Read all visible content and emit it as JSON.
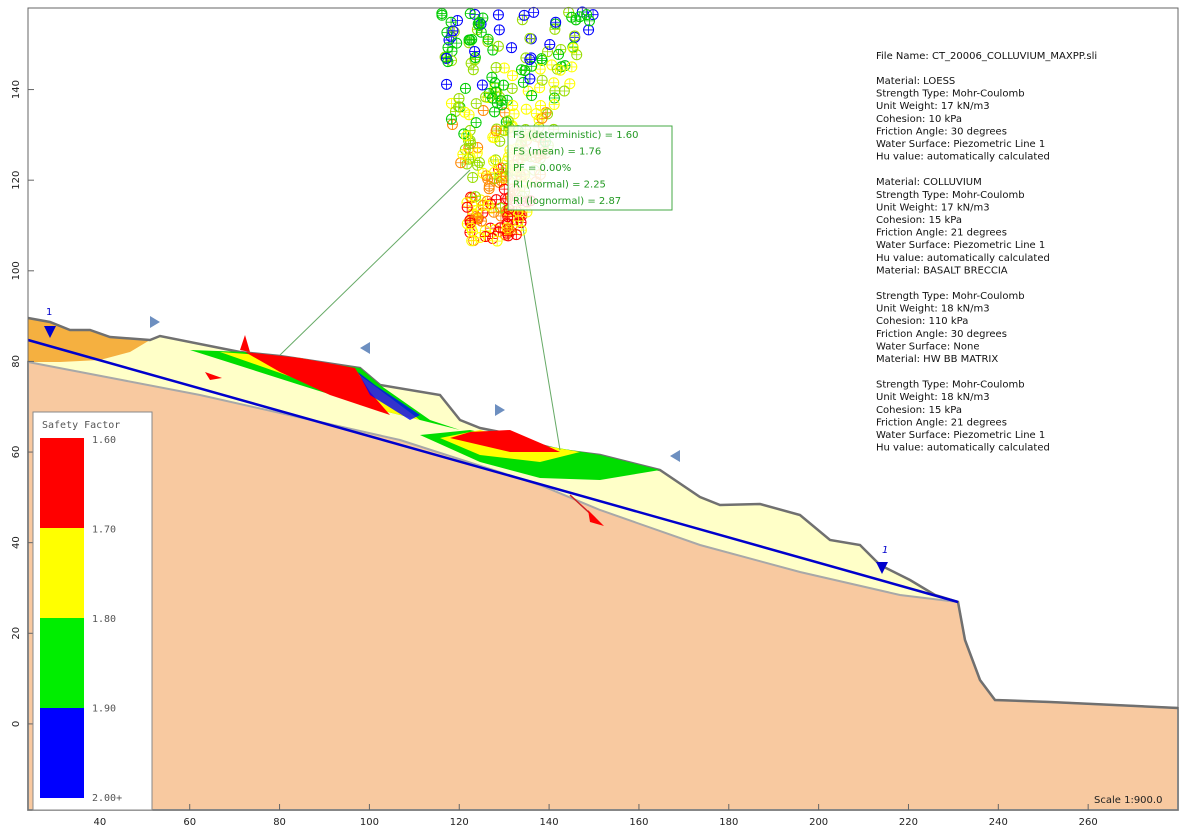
{
  "axes": {
    "xlim": [
      24,
      280
    ],
    "ylim": [
      -19,
      158
    ],
    "xticks": [
      40,
      60,
      80,
      100,
      120,
      140,
      160,
      180,
      200,
      220,
      240,
      260
    ],
    "yticks": [
      0,
      20,
      40,
      60,
      80,
      100,
      120,
      140
    ]
  },
  "results": [
    "FS (deterministic) = 1.60",
    "FS (mean) = 1.76",
    "PF = 0.00%",
    "RI (normal) = 2.25",
    "RI (lognormal) = 2.87"
  ],
  "info": {
    "file": "File Name: CT_20006_COLLUVIUM_MAXPP.sli",
    "blocks": [
      [
        "Material: LOESS",
        "Strength Type: Mohr-Coulomb",
        "Unit Weight: 17 kN/m3",
        "Cohesion: 10 kPa",
        "Friction Angle: 30 degrees",
        "Water Surface: Piezometric Line 1",
        "Hu value: automatically calculated"
      ],
      [
        "Material: COLLUVIUM",
        "Strength Type: Mohr-Coulomb",
        "Unit Weight: 17 kN/m3",
        "Cohesion: 15 kPa",
        "Friction Angle: 21 degrees",
        "Water Surface: Piezometric Line 1",
        "Hu value: automatically calculated",
        "Material: BASALT BRECCIA"
      ],
      [
        "Strength Type: Mohr-Coulomb",
        "Unit Weight: 18 kN/m3",
        "Cohesion: 110 kPa",
        "Friction Angle: 30 degrees",
        "Water Surface: None",
        "Material: HW BB MATRIX"
      ],
      [
        "Strength Type: Mohr-Coulomb",
        "Unit Weight: 18 kN/m3",
        "Cohesion: 15 kPa",
        "Friction Angle: 21 degrees",
        "Water Surface: Piezometric Line 1",
        "Hu value: automatically calculated"
      ]
    ]
  },
  "legend": {
    "title": "Safety Factor",
    "labels": [
      "1.60",
      "1.70",
      "1.80",
      "1.90",
      "2.00+"
    ],
    "colors": [
      "#ff0000",
      "#ffff00",
      "#00ee00",
      "#0000ff"
    ]
  },
  "piezo_labels": [
    "1",
    "1"
  ],
  "scale": "Scale 1:900.0"
}
